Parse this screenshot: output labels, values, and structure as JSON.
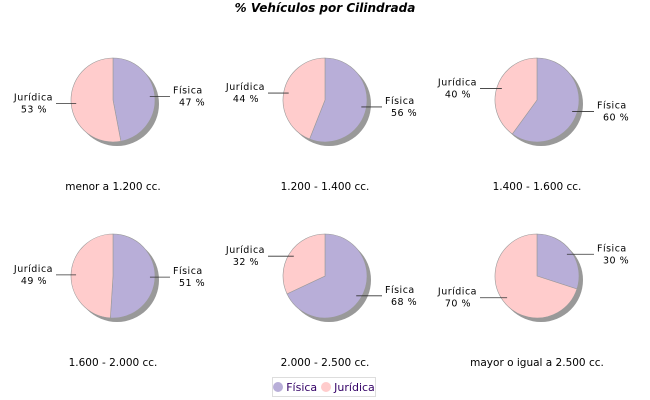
{
  "chart_data": {
    "type": "pie",
    "title": "% Vehículos por Cilindrada",
    "legend": {
      "placement": "bottom",
      "entries": [
        "Física",
        "Jurídica"
      ]
    },
    "colors": {
      "Física": "#b8aed8",
      "Jurídica": "#ffcccc"
    },
    "pies": [
      {
        "category": "menor a 1.200 cc.",
        "values": {
          "Física": 47,
          "Jurídica": 53
        }
      },
      {
        "category": "1.200 - 1.400 cc.",
        "values": {
          "Física": 56,
          "Jurídica": 44
        }
      },
      {
        "category": "1.400 - 1.600 cc.",
        "values": {
          "Física": 60,
          "Jurídica": 40
        }
      },
      {
        "category": "1.600 - 2.000 cc.",
        "values": {
          "Física": 51,
          "Jurídica": 49
        }
      },
      {
        "category": "2.000 - 2.500 cc.",
        "values": {
          "Física": 68,
          "Jurídica": 32
        }
      },
      {
        "category": "mayor o igual a 2.500 cc.",
        "values": {
          "Física": 30,
          "Jurídica": 70
        }
      }
    ]
  }
}
